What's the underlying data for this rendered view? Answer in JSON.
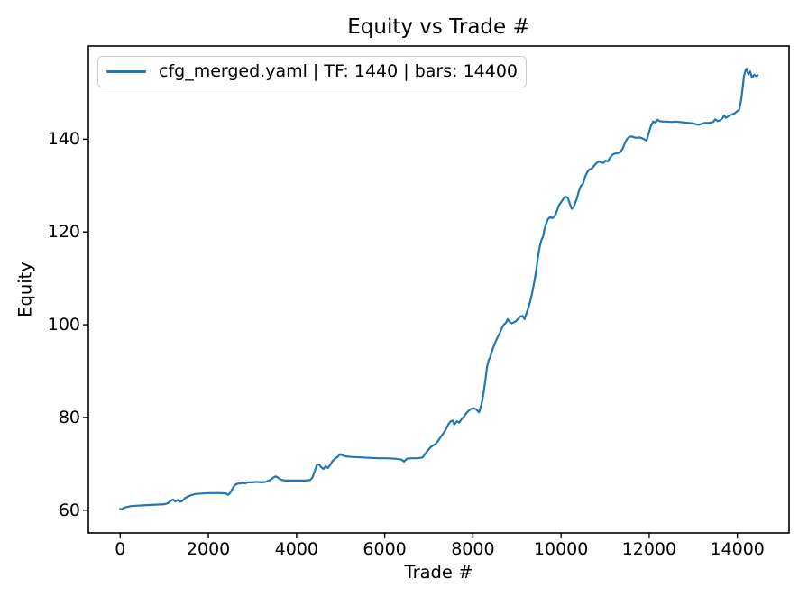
{
  "chart_data": {
    "type": "line",
    "title": "Equity vs Trade #",
    "xlabel": "Trade #",
    "ylabel": "Equity",
    "grid": false,
    "legend_position": "upper left",
    "line_color": "#1f77b4",
    "xlim": [
      -722.5,
      15172.5
    ],
    "ylim": [
      55.1,
      160.1
    ],
    "xticks": [
      0,
      2000,
      4000,
      6000,
      8000,
      10000,
      12000,
      14000
    ],
    "yticks": [
      60,
      80,
      100,
      120,
      140
    ],
    "series": [
      {
        "name": "cfg_merged.yaml | TF: 1440 | bars: 14400",
        "color": "#1f77b4",
        "points": [
          [
            0,
            60.3
          ],
          [
            40,
            60.2
          ],
          [
            80,
            60.5
          ],
          [
            150,
            60.7
          ],
          [
            250,
            60.9
          ],
          [
            400,
            61.0
          ],
          [
            600,
            61.1
          ],
          [
            800,
            61.2
          ],
          [
            1000,
            61.3
          ],
          [
            1080,
            61.5
          ],
          [
            1140,
            62.0
          ],
          [
            1200,
            62.3
          ],
          [
            1250,
            61.9
          ],
          [
            1310,
            62.2
          ],
          [
            1360,
            61.8
          ],
          [
            1420,
            62.1
          ],
          [
            1470,
            62.6
          ],
          [
            1530,
            62.9
          ],
          [
            1600,
            63.2
          ],
          [
            1700,
            63.5
          ],
          [
            1850,
            63.6
          ],
          [
            2000,
            63.7
          ],
          [
            2150,
            63.7
          ],
          [
            2300,
            63.7
          ],
          [
            2400,
            63.6
          ],
          [
            2450,
            63.3
          ],
          [
            2500,
            63.8
          ],
          [
            2550,
            64.7
          ],
          [
            2600,
            65.4
          ],
          [
            2650,
            65.7
          ],
          [
            2720,
            65.8
          ],
          [
            2780,
            65.9
          ],
          [
            2840,
            65.8
          ],
          [
            2900,
            66.0
          ],
          [
            3000,
            66.0
          ],
          [
            3100,
            66.1
          ],
          [
            3200,
            66.0
          ],
          [
            3300,
            66.1
          ],
          [
            3400,
            66.5
          ],
          [
            3470,
            67.0
          ],
          [
            3520,
            67.3
          ],
          [
            3570,
            67.1
          ],
          [
            3620,
            66.7
          ],
          [
            3680,
            66.5
          ],
          [
            3750,
            66.4
          ],
          [
            3900,
            66.4
          ],
          [
            4050,
            66.4
          ],
          [
            4200,
            66.4
          ],
          [
            4300,
            66.5
          ],
          [
            4360,
            67.0
          ],
          [
            4410,
            68.4
          ],
          [
            4460,
            69.7
          ],
          [
            4510,
            69.9
          ],
          [
            4560,
            69.3
          ],
          [
            4610,
            68.9
          ],
          [
            4660,
            69.5
          ],
          [
            4710,
            69.1
          ],
          [
            4760,
            69.7
          ],
          [
            4810,
            70.5
          ],
          [
            4870,
            71.1
          ],
          [
            4930,
            71.5
          ],
          [
            4990,
            72.1
          ],
          [
            5050,
            71.8
          ],
          [
            5120,
            71.6
          ],
          [
            5250,
            71.5
          ],
          [
            5450,
            71.4
          ],
          [
            5650,
            71.3
          ],
          [
            5850,
            71.2
          ],
          [
            6050,
            71.2
          ],
          [
            6250,
            71.1
          ],
          [
            6380,
            70.9
          ],
          [
            6440,
            70.5
          ],
          [
            6500,
            71.1
          ],
          [
            6600,
            71.2
          ],
          [
            6750,
            71.2
          ],
          [
            6860,
            71.4
          ],
          [
            6920,
            72.2
          ],
          [
            6980,
            72.9
          ],
          [
            7040,
            73.6
          ],
          [
            7100,
            74.0
          ],
          [
            7160,
            74.3
          ],
          [
            7220,
            75.1
          ],
          [
            7280,
            75.9
          ],
          [
            7340,
            76.7
          ],
          [
            7400,
            77.7
          ],
          [
            7450,
            78.6
          ],
          [
            7500,
            79.2
          ],
          [
            7540,
            79.3
          ],
          [
            7580,
            78.5
          ],
          [
            7640,
            79.2
          ],
          [
            7690,
            78.9
          ],
          [
            7740,
            79.6
          ],
          [
            7790,
            80.1
          ],
          [
            7850,
            80.9
          ],
          [
            7900,
            81.4
          ],
          [
            7950,
            81.8
          ],
          [
            8010,
            82.0
          ],
          [
            8070,
            81.8
          ],
          [
            8110,
            81.4
          ],
          [
            8140,
            81.1
          ],
          [
            8170,
            82.0
          ],
          [
            8210,
            83.5
          ],
          [
            8250,
            85.8
          ],
          [
            8290,
            88.5
          ],
          [
            8320,
            90.8
          ],
          [
            8360,
            92.4
          ],
          [
            8390,
            92.9
          ],
          [
            8420,
            93.9
          ],
          [
            8460,
            95.0
          ],
          [
            8510,
            96.2
          ],
          [
            8560,
            97.3
          ],
          [
            8610,
            98.2
          ],
          [
            8660,
            99.3
          ],
          [
            8700,
            100.0
          ],
          [
            8750,
            100.4
          ],
          [
            8790,
            101.2
          ],
          [
            8830,
            100.6
          ],
          [
            8880,
            100.3
          ],
          [
            8930,
            100.5
          ],
          [
            8980,
            100.8
          ],
          [
            9030,
            101.3
          ],
          [
            9080,
            101.8
          ],
          [
            9130,
            101.9
          ],
          [
            9170,
            101.2
          ],
          [
            9210,
            102.3
          ],
          [
            9250,
            103.4
          ],
          [
            9300,
            105.0
          ],
          [
            9350,
            107.1
          ],
          [
            9400,
            109.6
          ],
          [
            9440,
            112.0
          ],
          [
            9480,
            114.8
          ],
          [
            9520,
            117.0
          ],
          [
            9560,
            118.4
          ],
          [
            9590,
            118.9
          ],
          [
            9620,
            120.4
          ],
          [
            9660,
            121.7
          ],
          [
            9700,
            122.7
          ],
          [
            9750,
            123.2
          ],
          [
            9800,
            123.0
          ],
          [
            9850,
            123.3
          ],
          [
            9900,
            124.4
          ],
          [
            9950,
            125.7
          ],
          [
            10000,
            126.4
          ],
          [
            10050,
            127.1
          ],
          [
            10100,
            127.6
          ],
          [
            10150,
            127.4
          ],
          [
            10200,
            126.1
          ],
          [
            10240,
            125.0
          ],
          [
            10280,
            125.3
          ],
          [
            10320,
            126.2
          ],
          [
            10360,
            127.2
          ],
          [
            10400,
            128.7
          ],
          [
            10450,
            129.9
          ],
          [
            10500,
            130.4
          ],
          [
            10550,
            132.0
          ],
          [
            10600,
            133.0
          ],
          [
            10650,
            133.5
          ],
          [
            10700,
            133.7
          ],
          [
            10760,
            134.4
          ],
          [
            10810,
            134.9
          ],
          [
            10860,
            135.2
          ],
          [
            10910,
            135.0
          ],
          [
            10960,
            134.9
          ],
          [
            11010,
            135.4
          ],
          [
            11060,
            135.2
          ],
          [
            11110,
            136.0
          ],
          [
            11160,
            136.6
          ],
          [
            11220,
            136.9
          ],
          [
            11280,
            137.0
          ],
          [
            11340,
            137.2
          ],
          [
            11400,
            138.0
          ],
          [
            11450,
            139.2
          ],
          [
            11500,
            140.1
          ],
          [
            11550,
            140.5
          ],
          [
            11600,
            140.6
          ],
          [
            11660,
            140.4
          ],
          [
            11720,
            140.3
          ],
          [
            11780,
            140.4
          ],
          [
            11840,
            140.2
          ],
          [
            11900,
            139.9
          ],
          [
            11940,
            139.7
          ],
          [
            11990,
            141.3
          ],
          [
            12040,
            142.9
          ],
          [
            12090,
            143.8
          ],
          [
            12140,
            143.6
          ],
          [
            12190,
            144.2
          ],
          [
            12240,
            143.9
          ],
          [
            12300,
            143.8
          ],
          [
            12400,
            143.8
          ],
          [
            12500,
            143.7
          ],
          [
            12600,
            143.8
          ],
          [
            12700,
            143.7
          ],
          [
            12800,
            143.6
          ],
          [
            12900,
            143.5
          ],
          [
            13000,
            143.4
          ],
          [
            13070,
            143.2
          ],
          [
            13120,
            143.1
          ],
          [
            13180,
            143.3
          ],
          [
            13250,
            143.5
          ],
          [
            13350,
            143.5
          ],
          [
            13450,
            143.7
          ],
          [
            13500,
            144.3
          ],
          [
            13550,
            143.9
          ],
          [
            13610,
            144.1
          ],
          [
            13660,
            144.5
          ],
          [
            13700,
            145.1
          ],
          [
            13740,
            144.6
          ],
          [
            13790,
            144.9
          ],
          [
            13840,
            145.2
          ],
          [
            13890,
            145.4
          ],
          [
            13940,
            145.6
          ],
          [
            13990,
            146.0
          ],
          [
            14040,
            146.3
          ],
          [
            14090,
            148.7
          ],
          [
            14120,
            151.2
          ],
          [
            14150,
            153.6
          ],
          [
            14190,
            155.0
          ],
          [
            14210,
            155.2
          ],
          [
            14250,
            154.0
          ],
          [
            14290,
            154.6
          ],
          [
            14330,
            153.3
          ],
          [
            14380,
            153.9
          ],
          [
            14430,
            153.6
          ],
          [
            14460,
            153.8
          ]
        ]
      }
    ]
  },
  "style": {
    "spine_color": "#000000",
    "tick_color": "#000000",
    "legend_border_color": "#cbcbcb",
    "background": "#ffffff"
  }
}
